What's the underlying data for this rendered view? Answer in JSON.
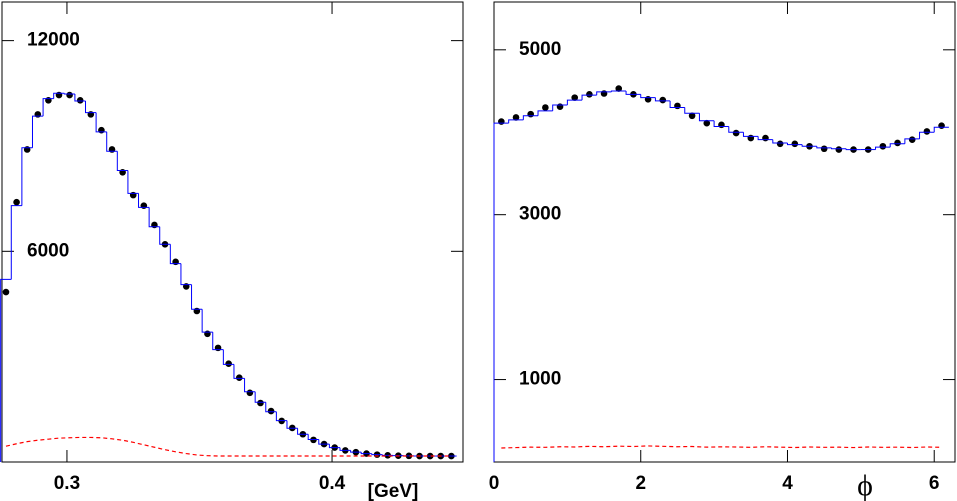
{
  "chart_data": [
    {
      "type": "histogram-fit",
      "xlabel": "[GeV]",
      "xlim": [
        0.2755,
        0.4494
      ],
      "ylim": [
        0,
        13100
      ],
      "xticks": [
        0.3,
        0.4
      ],
      "yticks": [
        6000,
        12000
      ],
      "bin_width": 0.004,
      "x": [
        0.277,
        0.281,
        0.285,
        0.289,
        0.293,
        0.297,
        0.301,
        0.305,
        0.309,
        0.313,
        0.317,
        0.321,
        0.325,
        0.329,
        0.333,
        0.337,
        0.341,
        0.345,
        0.349,
        0.353,
        0.357,
        0.361,
        0.365,
        0.369,
        0.373,
        0.377,
        0.381,
        0.385,
        0.389,
        0.393,
        0.397,
        0.401,
        0.405,
        0.409,
        0.413,
        0.417,
        0.421,
        0.425,
        0.429,
        0.433,
        0.437,
        0.441,
        0.445
      ],
      "series": [
        {
          "style": "points",
          "color": "#000000",
          "values": [
            4840,
            7400,
            8900,
            9900,
            10300,
            10450,
            10450,
            10300,
            9900,
            9450,
            8900,
            8250,
            7600,
            7300,
            6750,
            6200,
            5700,
            5000,
            4300,
            3650,
            3250,
            2800,
            2400,
            1970,
            1680,
            1450,
            1170,
            970,
            790,
            630,
            510,
            410,
            330,
            280,
            240,
            210,
            190,
            180,
            175,
            170,
            170,
            170,
            170
          ]
        },
        {
          "style": "step",
          "color": "#0000ff",
          "values": [
            5200,
            7300,
            8950,
            9850,
            10350,
            10500,
            10480,
            10280,
            9950,
            9400,
            8850,
            8300,
            7650,
            7250,
            6700,
            6200,
            5650,
            5050,
            4350,
            3700,
            3200,
            2780,
            2380,
            2000,
            1700,
            1430,
            1180,
            960,
            790,
            640,
            510,
            410,
            330,
            280,
            240,
            210,
            190,
            180,
            175,
            170,
            170,
            170,
            170
          ]
        },
        {
          "style": "dashed",
          "color": "#ff0000",
          "values": [
            450,
            520,
            580,
            620,
            650,
            680,
            690,
            700,
            700,
            690,
            660,
            620,
            560,
            490,
            420,
            350,
            290,
            240,
            200,
            180,
            170,
            170,
            170,
            170,
            170,
            170,
            170,
            170,
            170,
            170,
            170,
            170,
            170,
            170,
            170,
            170,
            170,
            170,
            170,
            170,
            170,
            170,
            170
          ]
        }
      ]
    },
    {
      "type": "histogram-fit",
      "xlabel": "ϕ",
      "xlim": [
        0,
        6.2832
      ],
      "ylim": [
        0,
        5580
      ],
      "xticks": [
        0,
        2,
        4,
        6
      ],
      "yticks": [
        1000,
        3000,
        5000
      ],
      "bin_width": 0.2,
      "x": [
        0.1,
        0.3,
        0.5,
        0.7,
        0.9,
        1.1,
        1.3,
        1.5,
        1.7,
        1.9,
        2.1,
        2.3,
        2.5,
        2.7,
        2.9,
        3.1,
        3.3,
        3.5,
        3.7,
        3.9,
        4.1,
        4.3,
        4.5,
        4.7,
        4.9,
        5.1,
        5.3,
        5.5,
        5.7,
        5.9,
        6.1
      ],
      "series": [
        {
          "style": "points",
          "color": "#000000",
          "values": [
            4130,
            4180,
            4220,
            4300,
            4310,
            4420,
            4460,
            4470,
            4530,
            4460,
            4400,
            4390,
            4320,
            4200,
            4110,
            4090,
            3990,
            3930,
            3930,
            3860,
            3860,
            3830,
            3800,
            3790,
            3790,
            3790,
            3830,
            3870,
            3910,
            4010,
            4080
          ]
        },
        {
          "style": "step",
          "color": "#0000ff",
          "values": [
            4110,
            4150,
            4200,
            4260,
            4330,
            4390,
            4450,
            4490,
            4500,
            4460,
            4420,
            4380,
            4300,
            4230,
            4140,
            4070,
            4000,
            3950,
            3910,
            3870,
            3850,
            3830,
            3810,
            3800,
            3790,
            3790,
            3820,
            3860,
            3920,
            4000,
            4060
          ]
        },
        {
          "style": "dashed",
          "color": "#ff0000",
          "values": [
            170,
            175,
            180,
            178,
            185,
            182,
            190,
            185,
            192,
            188,
            195,
            190,
            185,
            188,
            180,
            184,
            182,
            178,
            185,
            180,
            176,
            182,
            178,
            180,
            175,
            182,
            178,
            180,
            176,
            182,
            178
          ]
        }
      ]
    }
  ]
}
